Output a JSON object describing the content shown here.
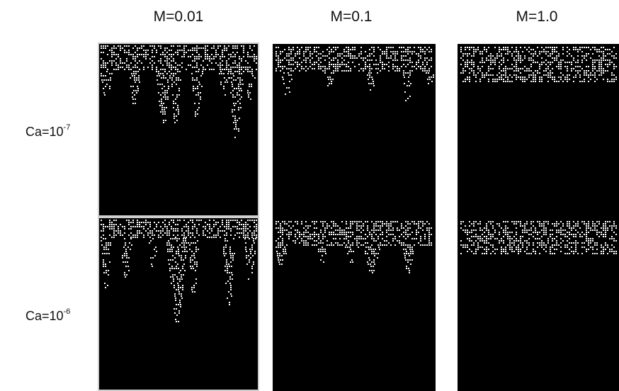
{
  "columns": [
    {
      "label": "M=0.01"
    },
    {
      "label": "M=0.1"
    },
    {
      "label": "M=1.0"
    }
  ],
  "rows": [
    {
      "label_base": "Ca=10",
      "label_exp": "-7"
    },
    {
      "label_base": "Ca=10",
      "label_exp": "-6"
    }
  ],
  "colors": {
    "background": "#000000",
    "invading_fluid": "#ffffff",
    "panel_border": "#cfcfcf"
  }
}
